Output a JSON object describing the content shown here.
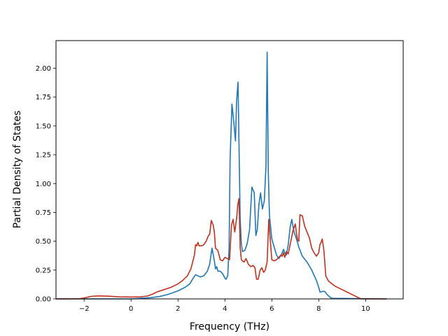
{
  "chart_data": {
    "type": "line",
    "title": "",
    "xlabel": "Frequency (THz)",
    "ylabel": "Partial Density of States",
    "xlim": [
      -3.2,
      11.6
    ],
    "ylim": [
      0,
      2.24
    ],
    "xticks": [
      -2,
      0,
      2,
      4,
      6,
      8,
      10
    ],
    "xtick_labels": [
      "−2",
      "0",
      "2",
      "4",
      "6",
      "8",
      "10"
    ],
    "yticks": [
      0,
      0.25,
      0.5,
      0.75,
      1.0,
      1.25,
      1.5,
      1.75,
      2.0
    ],
    "ytick_labels": [
      "0.00",
      "0.25",
      "0.50",
      "0.75",
      "1.00",
      "1.25",
      "1.50",
      "1.75",
      "2.00"
    ],
    "grid": false,
    "legend": "none",
    "series": [
      {
        "color": "#1f77b4",
        "x": [
          -3.2,
          -2.0,
          -1.0,
          0.0,
          0.8,
          1.2,
          1.6,
          2.0,
          2.3,
          2.5,
          2.65,
          2.75,
          2.85,
          2.95,
          3.1,
          3.25,
          3.35,
          3.45,
          3.55,
          3.6,
          3.65,
          3.7,
          3.8,
          3.9,
          4.0,
          4.05,
          4.12,
          4.18,
          4.22,
          4.3,
          4.38,
          4.45,
          4.5,
          4.56,
          4.6,
          4.65,
          4.7,
          4.75,
          4.85,
          4.95,
          5.05,
          5.15,
          5.25,
          5.32,
          5.38,
          5.45,
          5.52,
          5.6,
          5.68,
          5.75,
          5.8,
          5.85,
          5.9,
          5.95,
          6.0,
          6.1,
          6.2,
          6.3,
          6.4,
          6.5,
          6.55,
          6.62,
          6.7,
          6.78,
          6.85,
          6.9,
          6.95,
          7.05,
          7.15,
          7.3,
          7.5,
          7.7,
          7.9,
          8.0,
          8.05,
          8.1,
          8.15,
          8.25,
          8.35,
          8.45,
          8.55,
          10.9
        ],
        "values": [
          0,
          0,
          0,
          0,
          0.01,
          0.02,
          0.04,
          0.07,
          0.1,
          0.13,
          0.18,
          0.21,
          0.2,
          0.19,
          0.2,
          0.24,
          0.3,
          0.44,
          0.33,
          0.26,
          0.28,
          0.24,
          0.24,
          0.22,
          0.18,
          0.17,
          0.2,
          0.45,
          1.2,
          1.69,
          1.53,
          1.37,
          1.72,
          1.88,
          1.35,
          0.7,
          0.48,
          0.41,
          0.42,
          0.48,
          0.6,
          0.97,
          0.92,
          0.55,
          0.6,
          0.82,
          0.92,
          0.78,
          0.85,
          1.15,
          2.14,
          1.1,
          0.72,
          0.62,
          0.52,
          0.45,
          0.38,
          0.35,
          0.38,
          0.43,
          0.4,
          0.38,
          0.47,
          0.62,
          0.69,
          0.63,
          0.58,
          0.52,
          0.45,
          0.37,
          0.32,
          0.25,
          0.16,
          0.1,
          0.06,
          0.06,
          0.065,
          0.065,
          0.04,
          0.02,
          0.005,
          0
        ]
      },
      {
        "color": "#c0321e",
        "x": [
          -3.2,
          -2.2,
          -2.0,
          -1.7,
          -1.4,
          -1.0,
          -0.5,
          0.0,
          0.4,
          0.7,
          0.9,
          1.1,
          1.4,
          1.7,
          2.0,
          2.2,
          2.4,
          2.55,
          2.65,
          2.7,
          2.75,
          2.8,
          2.85,
          2.9,
          3.0,
          3.1,
          3.2,
          3.3,
          3.35,
          3.42,
          3.5,
          3.55,
          3.6,
          3.7,
          3.8,
          3.9,
          4.0,
          4.1,
          4.2,
          4.28,
          4.35,
          4.42,
          4.5,
          4.55,
          4.6,
          4.65,
          4.7,
          4.75,
          4.82,
          4.9,
          5.0,
          5.1,
          5.2,
          5.28,
          5.35,
          5.42,
          5.5,
          5.58,
          5.65,
          5.72,
          5.8,
          5.87,
          5.92,
          6.0,
          6.1,
          6.2,
          6.3,
          6.38,
          6.45,
          6.5,
          6.55,
          6.62,
          6.7,
          6.8,
          6.9,
          6.95,
          7.0,
          7.05,
          7.1,
          7.15,
          7.2,
          7.3,
          7.4,
          7.5,
          7.6,
          7.7,
          7.8,
          7.9,
          8.0,
          8.05,
          8.1,
          8.15,
          8.22,
          8.3,
          8.4,
          8.5,
          8.7,
          9.0,
          9.2,
          9.5,
          9.7,
          9.8,
          10.0,
          10.9
        ],
        "values": [
          0,
          0.001,
          0.008,
          0.022,
          0.026,
          0.024,
          0.018,
          0.016,
          0.018,
          0.025,
          0.04,
          0.06,
          0.08,
          0.1,
          0.13,
          0.16,
          0.2,
          0.26,
          0.34,
          0.38,
          0.47,
          0.46,
          0.49,
          0.46,
          0.46,
          0.47,
          0.5,
          0.55,
          0.56,
          0.68,
          0.64,
          0.58,
          0.44,
          0.42,
          0.34,
          0.33,
          0.36,
          0.35,
          0.34,
          0.64,
          0.69,
          0.58,
          0.7,
          0.82,
          0.87,
          0.45,
          0.34,
          0.33,
          0.32,
          0.35,
          0.3,
          0.28,
          0.29,
          0.27,
          0.17,
          0.17,
          0.25,
          0.27,
          0.23,
          0.25,
          0.32,
          0.69,
          0.55,
          0.34,
          0.33,
          0.34,
          0.36,
          0.38,
          0.37,
          0.4,
          0.36,
          0.41,
          0.39,
          0.49,
          0.59,
          0.62,
          0.65,
          0.57,
          0.51,
          0.5,
          0.73,
          0.72,
          0.63,
          0.58,
          0.53,
          0.44,
          0.4,
          0.37,
          0.4,
          0.47,
          0.49,
          0.52,
          0.42,
          0.2,
          0.16,
          0.14,
          0.11,
          0.08,
          0.06,
          0.03,
          0.01,
          0,
          0,
          0
        ]
      }
    ]
  }
}
